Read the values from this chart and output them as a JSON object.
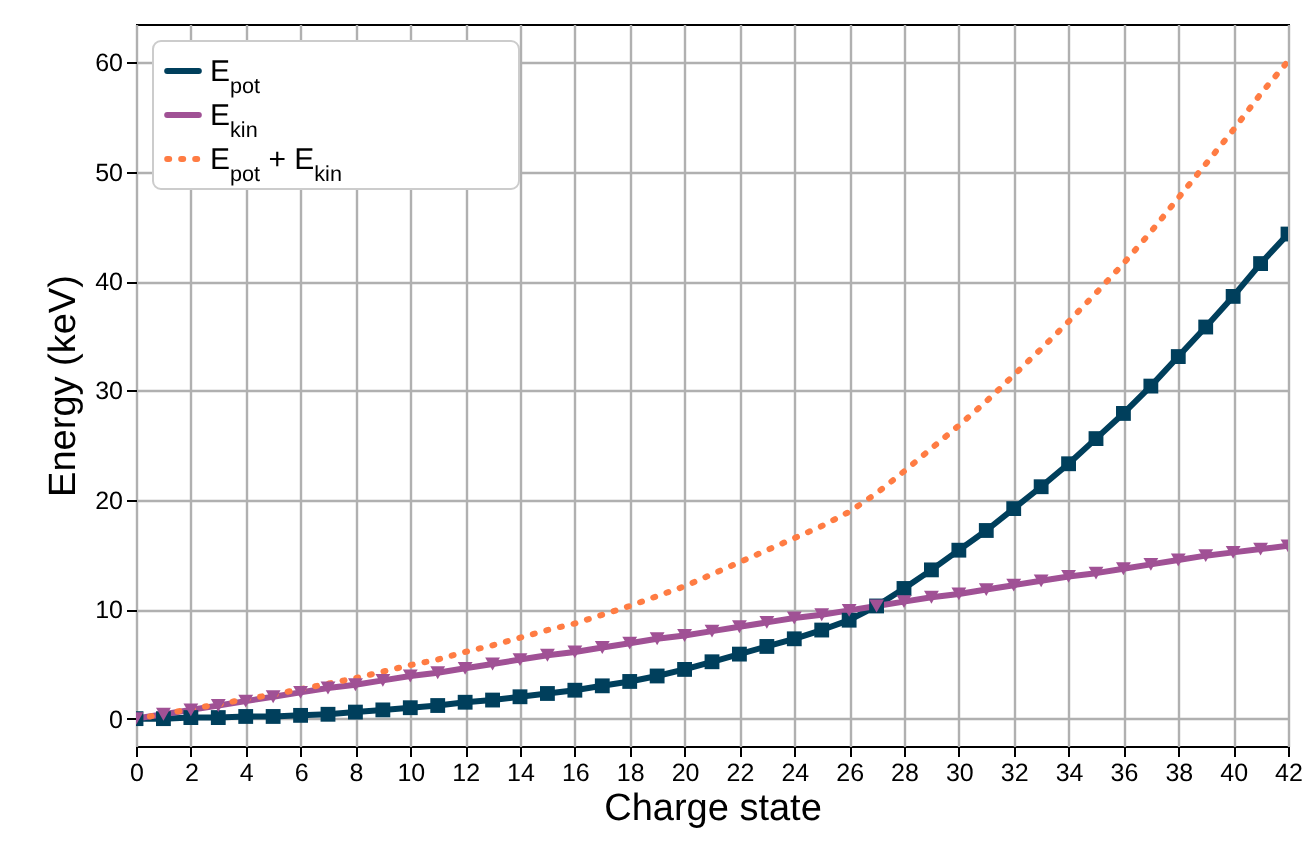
{
  "chart_data": {
    "type": "line",
    "xlabel": "Charge state",
    "ylabel": "Energy (keV)",
    "x": [
      0,
      1,
      2,
      3,
      4,
      5,
      6,
      7,
      8,
      9,
      10,
      11,
      12,
      13,
      14,
      15,
      16,
      17,
      18,
      19,
      20,
      21,
      22,
      23,
      24,
      25,
      26,
      27,
      28,
      29,
      30,
      31,
      32,
      33,
      34,
      35,
      36,
      37,
      38,
      39,
      40,
      41,
      42
    ],
    "series": [
      {
        "name": "E$_{pot}$",
        "color": "#003f5c",
        "marker": "square",
        "line_style": "solid",
        "values": [
          0,
          0,
          0.1,
          0.1,
          0.2,
          0.2,
          0.3,
          0.4,
          0.6,
          0.8,
          1.0,
          1.2,
          1.5,
          1.7,
          2.0,
          2.3,
          2.6,
          3.0,
          3.4,
          3.9,
          4.5,
          5.2,
          5.9,
          6.6,
          7.3,
          8.1,
          9.0,
          10.3,
          11.9,
          13.6,
          15.4,
          17.2,
          19.2,
          21.2,
          23.3,
          25.6,
          27.9,
          30.4,
          33.1,
          35.8,
          38.6,
          41.6,
          44.3
        ]
      },
      {
        "name": "E$_{kin}$",
        "color": "#a05195",
        "marker": "triangle",
        "line_style": "solid",
        "values": [
          0,
          0.4,
          0.8,
          1.2,
          1.6,
          2.0,
          2.4,
          2.8,
          3.1,
          3.5,
          3.9,
          4.2,
          4.6,
          5.0,
          5.4,
          5.8,
          6.1,
          6.5,
          6.9,
          7.3,
          7.6,
          8.0,
          8.4,
          8.8,
          9.2,
          9.5,
          9.9,
          10.3,
          10.7,
          11.1,
          11.4,
          11.8,
          12.2,
          12.6,
          13.0,
          13.3,
          13.7,
          14.1,
          14.5,
          14.9,
          15.2,
          15.5,
          15.8
        ]
      },
      {
        "name": "E$_{pot}$ + E$_{kin}$",
        "color": "#ff7c43",
        "marker": "none",
        "line_style": "dotted",
        "values": [
          0,
          0.4,
          0.9,
          1.3,
          1.8,
          2.2,
          2.7,
          3.2,
          3.7,
          4.3,
          4.9,
          5.4,
          6.1,
          6.7,
          7.4,
          8.1,
          8.7,
          9.5,
          10.3,
          11.2,
          12.1,
          13.2,
          14.3,
          15.4,
          16.5,
          17.6,
          18.9,
          20.6,
          22.6,
          24.7,
          26.8,
          29.0,
          31.4,
          33.8,
          36.3,
          38.9,
          41.6,
          44.5,
          47.6,
          50.7,
          53.8,
          57.1,
          60.1
        ]
      }
    ],
    "xlim": [
      0,
      42
    ],
    "xticks": [
      0,
      2,
      4,
      6,
      8,
      10,
      12,
      14,
      16,
      18,
      20,
      22,
      24,
      26,
      28,
      30,
      32,
      34,
      36,
      38,
      40,
      42
    ],
    "ylim": [
      -2.5,
      63.5
    ],
    "yticks": [
      0,
      10,
      20,
      30,
      40,
      50,
      60
    ],
    "grid": true,
    "legend": "top left"
  }
}
